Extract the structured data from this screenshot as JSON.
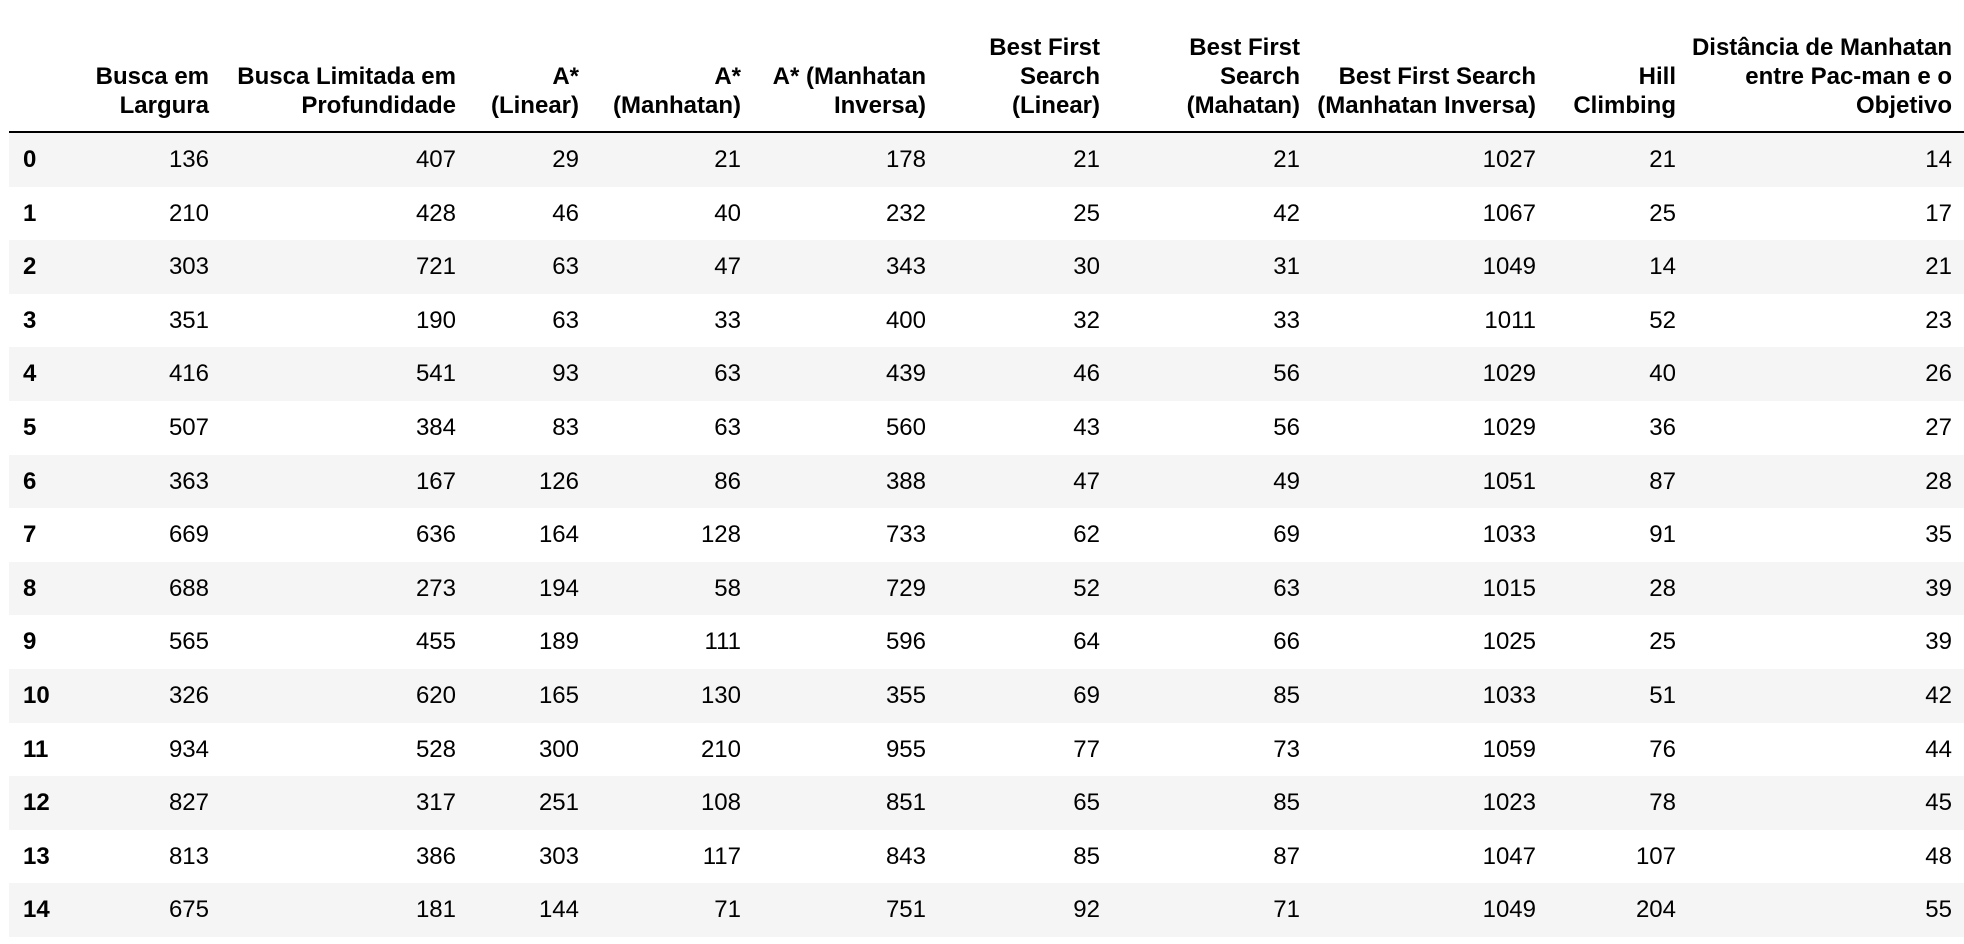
{
  "table": {
    "columns": [
      "Busca em Largura",
      "Busca Limitada em Profundidade",
      "A* (Linear)",
      "A* (Manhatan)",
      "A* (Manhatan Inversa)",
      "Best First Search (Linear)",
      "Best First Search (Mahatan)",
      "Best First Search (Manhatan Inversa)",
      "Hill Climbing",
      "Distância de Manhatan entre Pac-man e o Objetivo"
    ],
    "rows": [
      {
        "index": "0",
        "cells": [
          "136",
          "407",
          "29",
          "21",
          "178",
          "21",
          "21",
          "1027",
          "21",
          "14"
        ]
      },
      {
        "index": "1",
        "cells": [
          "210",
          "428",
          "46",
          "40",
          "232",
          "25",
          "42",
          "1067",
          "25",
          "17"
        ]
      },
      {
        "index": "2",
        "cells": [
          "303",
          "721",
          "63",
          "47",
          "343",
          "30",
          "31",
          "1049",
          "14",
          "21"
        ]
      },
      {
        "index": "3",
        "cells": [
          "351",
          "190",
          "63",
          "33",
          "400",
          "32",
          "33",
          "1011",
          "52",
          "23"
        ]
      },
      {
        "index": "4",
        "cells": [
          "416",
          "541",
          "93",
          "63",
          "439",
          "46",
          "56",
          "1029",
          "40",
          "26"
        ]
      },
      {
        "index": "5",
        "cells": [
          "507",
          "384",
          "83",
          "63",
          "560",
          "43",
          "56",
          "1029",
          "36",
          "27"
        ]
      },
      {
        "index": "6",
        "cells": [
          "363",
          "167",
          "126",
          "86",
          "388",
          "47",
          "49",
          "1051",
          "87",
          "28"
        ]
      },
      {
        "index": "7",
        "cells": [
          "669",
          "636",
          "164",
          "128",
          "733",
          "62",
          "69",
          "1033",
          "91",
          "35"
        ]
      },
      {
        "index": "8",
        "cells": [
          "688",
          "273",
          "194",
          "58",
          "729",
          "52",
          "63",
          "1015",
          "28",
          "39"
        ]
      },
      {
        "index": "9",
        "cells": [
          "565",
          "455",
          "189",
          "111",
          "596",
          "64",
          "66",
          "1025",
          "25",
          "39"
        ]
      },
      {
        "index": "10",
        "cells": [
          "326",
          "620",
          "165",
          "130",
          "355",
          "69",
          "85",
          "1033",
          "51",
          "42"
        ]
      },
      {
        "index": "11",
        "cells": [
          "934",
          "528",
          "300",
          "210",
          "955",
          "77",
          "73",
          "1059",
          "76",
          "44"
        ]
      },
      {
        "index": "12",
        "cells": [
          "827",
          "317",
          "251",
          "108",
          "851",
          "65",
          "85",
          "1023",
          "78",
          "45"
        ]
      },
      {
        "index": "13",
        "cells": [
          "813",
          "386",
          "303",
          "117",
          "843",
          "85",
          "87",
          "1047",
          "107",
          "48"
        ]
      },
      {
        "index": "14",
        "cells": [
          "675",
          "181",
          "144",
          "71",
          "751",
          "92",
          "71",
          "1049",
          "204",
          "55"
        ]
      }
    ]
  },
  "colors": {
    "stripe": "#f5f5f5",
    "background": "#ffffff",
    "rule": "#000000"
  }
}
